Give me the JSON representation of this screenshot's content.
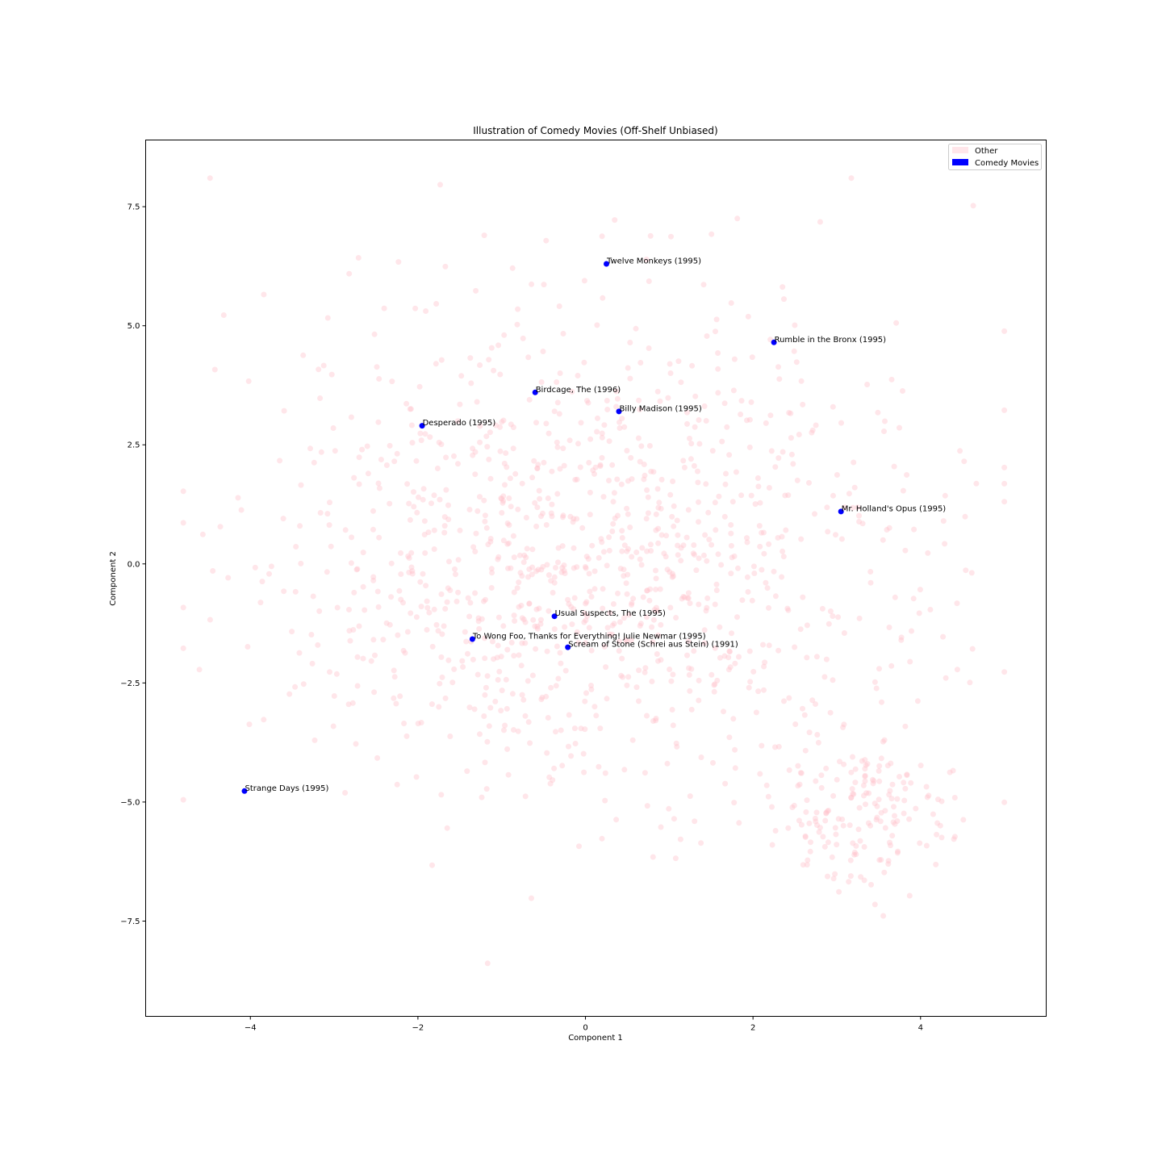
{
  "chart_data": {
    "type": "scatter",
    "title": "Illustration of Comedy Movies (Off-Shelf Unbiased)",
    "xlabel": "Component 1",
    "ylabel": "Component 2",
    "xlim": [
      -5.25,
      5.5
    ],
    "ylim": [
      -9.5,
      8.9
    ],
    "xticks": [
      -4,
      -2,
      0,
      2,
      4
    ],
    "xtick_labels": [
      "−4",
      "−2",
      "0",
      "2",
      "4"
    ],
    "yticks": [
      -7.5,
      -5.0,
      -2.5,
      0.0,
      2.5,
      5.0,
      7.5
    ],
    "ytick_labels": [
      "−7.5",
      "−5.0",
      "−2.5",
      "0.0",
      "2.5",
      "5.0",
      "7.5"
    ],
    "grid": false,
    "legend_position": "top-right",
    "series": [
      {
        "name": "Other",
        "color": "#ffc0cb",
        "alpha": 0.4,
        "count_estimate": 1300,
        "distribution": "broad cloud centered near (0, 0), spread roughly x -4.8..5.0 and y -8.8..8.1"
      },
      {
        "name": "Comedy Movies",
        "color": "#0000ff",
        "points": [
          {
            "label": "Twelve Monkeys (1995)",
            "x": 0.25,
            "y": 6.3
          },
          {
            "label": "Rumble in the Bronx (1995)",
            "x": 2.25,
            "y": 4.65
          },
          {
            "label": "Birdcage, The (1996)",
            "x": -0.6,
            "y": 3.6
          },
          {
            "label": "Billy Madison (1995)",
            "x": 0.4,
            "y": 3.2
          },
          {
            "label": "Desperado (1995)",
            "x": -1.95,
            "y": 2.9
          },
          {
            "label": "Mr. Holland's Opus (1995)",
            "x": 3.05,
            "y": 1.1
          },
          {
            "label": "Usual Suspects, The (1995)",
            "x": -0.37,
            "y": -1.1
          },
          {
            "label": "To Wong Foo, Thanks for Everything! Julie Newmar (1995)",
            "x": -1.35,
            "y": -1.58
          },
          {
            "label": "Scream of Stone (Schrei aus Stein) (1991)",
            "x": -0.21,
            "y": -1.75
          },
          {
            "label": "Strange Days (1995)",
            "x": -4.07,
            "y": -4.77
          }
        ]
      }
    ]
  }
}
